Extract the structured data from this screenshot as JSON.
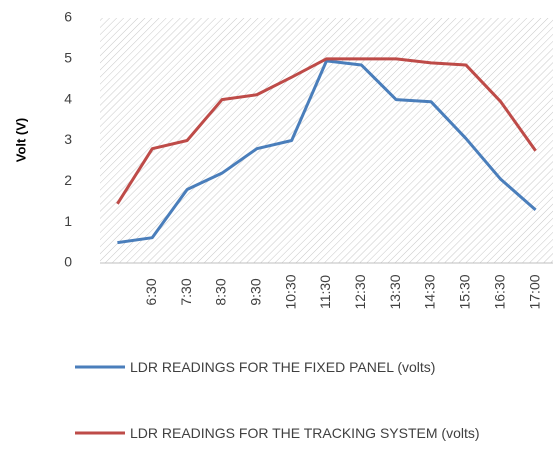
{
  "chart_data": {
    "type": "line",
    "y_label": "Volt (V)",
    "categories": [
      null,
      "6:30",
      "7:30",
      "8:30",
      "9:30",
      "10:30",
      "11:30",
      "12:30",
      "13:30",
      "14:30",
      "15:30",
      "16:30",
      "17:00"
    ],
    "series": [
      {
        "name": "LDR READINGS FOR THE FIXED PANEL (volts)",
        "color": "#4a7ebb",
        "values": [
          0.5,
          0.62,
          1.8,
          2.2,
          2.8,
          3.0,
          4.95,
          4.85,
          4.0,
          3.95,
          3.05,
          2.05,
          1.3
        ]
      },
      {
        "name": "LDR READINGS FOR THE TRACKING SYSTEM (volts)",
        "color": "#be4b48",
        "values": [
          1.45,
          2.8,
          3.0,
          4.0,
          4.12,
          4.55,
          5.0,
          5.0,
          5.0,
          4.9,
          4.85,
          3.95,
          2.75
        ]
      }
    ],
    "ylim": [
      0,
      6
    ],
    "yticks": [
      0,
      1,
      2,
      3,
      4,
      5,
      6
    ],
    "grid": false
  }
}
